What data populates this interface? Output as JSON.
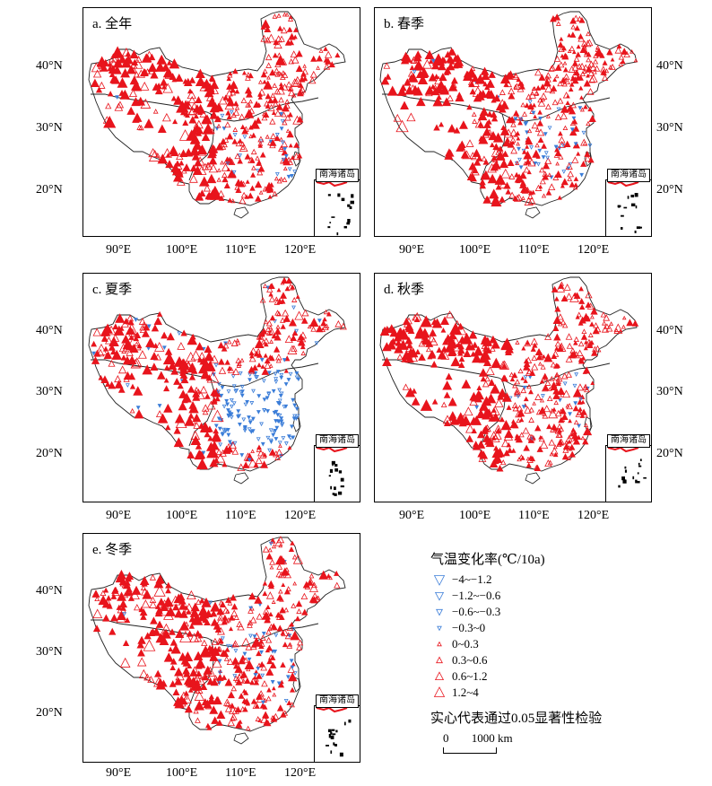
{
  "panels": [
    {
      "id": "a",
      "title": "a. 全年",
      "inset_label": "南海诸岛",
      "lat_side": "left",
      "lat_labels": [
        "40°N",
        "30°N",
        "20°N"
      ],
      "lon_labels": [
        "90°E",
        "100°E",
        "110°E",
        "120°E"
      ],
      "blue_level": 0.05
    },
    {
      "id": "b",
      "title": "b. 春季",
      "inset_label": "南海诸岛",
      "lat_side": "right",
      "lat_labels": [
        "40°N",
        "30°N",
        "20°N"
      ],
      "lon_labels": [
        "90°E",
        "100°E",
        "110°E",
        "120°E"
      ],
      "blue_level": 0.12
    },
    {
      "id": "c",
      "title": "c. 夏季",
      "inset_label": "南海诸岛",
      "lat_side": "left",
      "lat_labels": [
        "40°N",
        "30°N",
        "20°N"
      ],
      "lon_labels": [
        "90°E",
        "100°E",
        "110°E",
        "120°E"
      ],
      "blue_level": 0.55
    },
    {
      "id": "d",
      "title": "d. 秋季",
      "inset_label": "南海诸岛",
      "lat_side": "right",
      "lat_labels": [
        "40°N",
        "30°N",
        "20°N"
      ],
      "lon_labels": [
        "90°E",
        "100°E",
        "110°E",
        "120°E"
      ],
      "blue_level": 0.03
    },
    {
      "id": "e",
      "title": "e. 冬季",
      "inset_label": "南海诸岛",
      "lat_side": "left",
      "lat_labels": [
        "40°N",
        "30°N",
        "20°N"
      ],
      "lon_labels": [
        "90°E",
        "100°E",
        "110°E",
        "120°E"
      ],
      "blue_level": 0.1
    }
  ],
  "legend": {
    "title": "气温变化率(℃/10a)",
    "items": [
      {
        "label": "−4~−1.2",
        "color": "#3b7dd8",
        "dir": "down"
      },
      {
        "label": "−1.2~−0.6",
        "color": "#3b7dd8",
        "dir": "down"
      },
      {
        "label": "−0.6~−0.3",
        "color": "#3b7dd8",
        "dir": "down"
      },
      {
        "label": "−0.3~0",
        "color": "#3b7dd8",
        "dir": "down"
      },
      {
        "label": "0~0.3",
        "color": "#e8141c",
        "dir": "up"
      },
      {
        "label": "0.3~0.6",
        "color": "#e8141c",
        "dir": "up"
      },
      {
        "label": "0.6~1.2",
        "color": "#e8141c",
        "dir": "up"
      },
      {
        "label": "1.2~4",
        "color": "#e8141c",
        "dir": "up"
      }
    ],
    "note": "实心代表通过0.05显著性检验"
  },
  "scale": {
    "zero": "0",
    "distance": "1000 km"
  },
  "colors": {
    "positive": "#e8141c",
    "negative": "#3b7dd8",
    "border": "#000000"
  }
}
